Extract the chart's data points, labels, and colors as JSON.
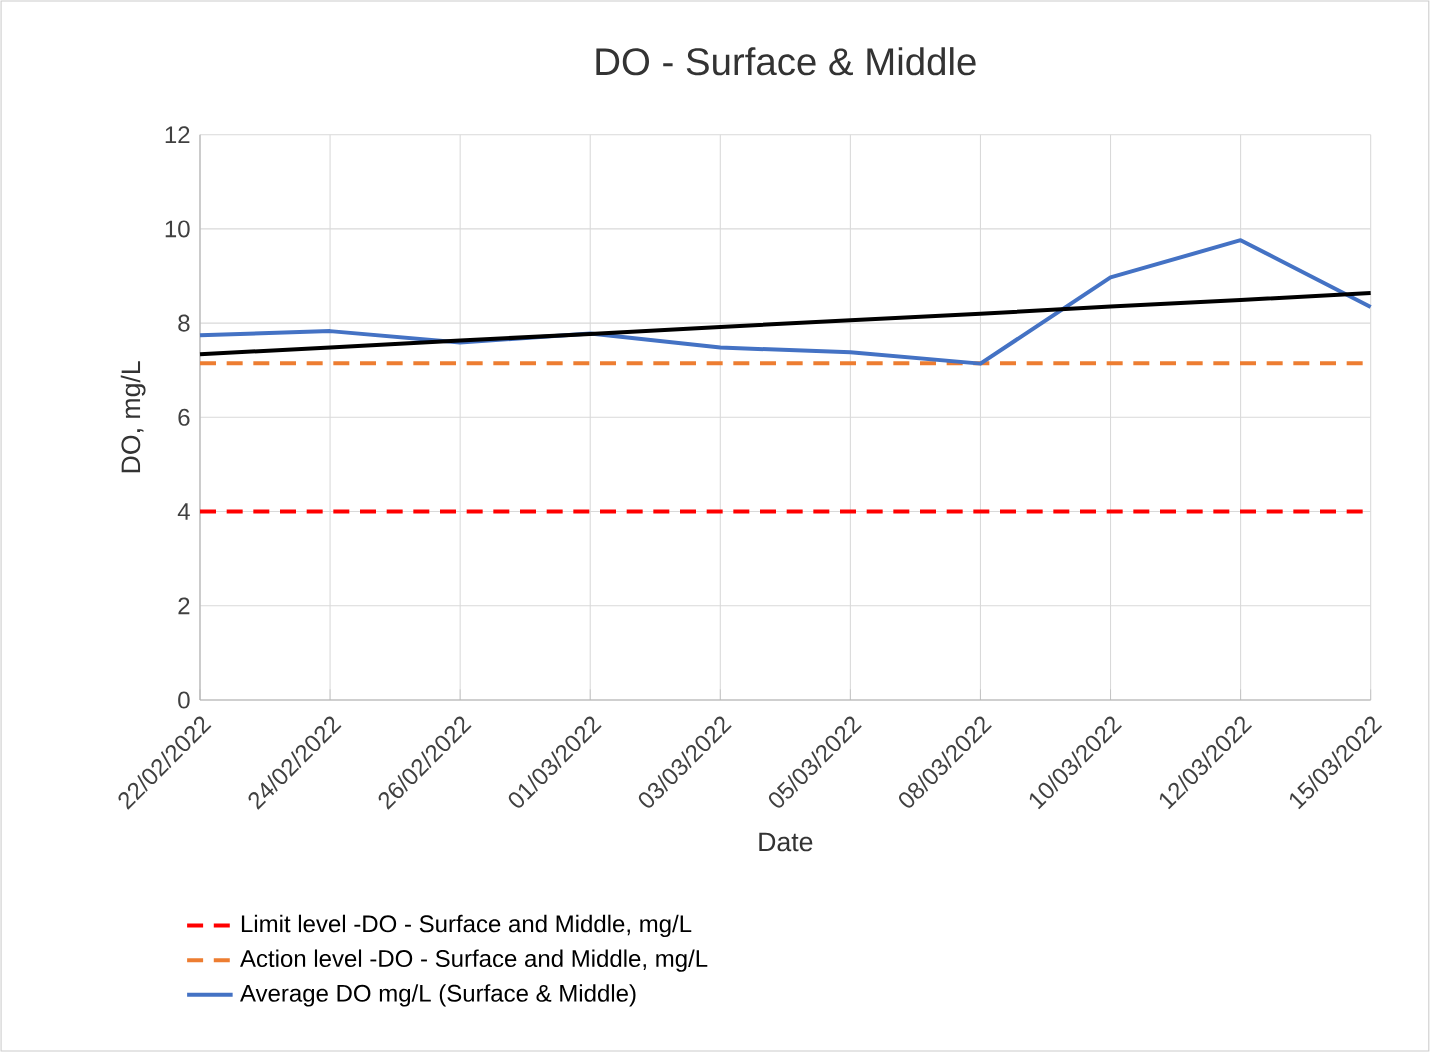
{
  "chart_data": {
    "type": "line",
    "title": "DO - Surface & Middle",
    "xlabel": "Date",
    "ylabel": "DO, mg/L",
    "categories": [
      "22/02/2022",
      "24/02/2022",
      "26/02/2022",
      "01/03/2022",
      "03/03/2022",
      "05/03/2022",
      "08/03/2022",
      "10/03/2022",
      "12/03/2022",
      "15/03/2022"
    ],
    "series": [
      {
        "name": "Limit level -DO - Surface and Middle, mg/L",
        "color": "#ff0000",
        "line_style": "dashed",
        "values": [
          4,
          4,
          4,
          4,
          4,
          4,
          4,
          4,
          4,
          4
        ]
      },
      {
        "name": "Action level -DO - Surface and Middle, mg/L",
        "color": "#ed7d31",
        "line_style": "dashed",
        "values": [
          7.15,
          7.15,
          7.15,
          7.15,
          7.15,
          7.15,
          7.15,
          7.15,
          7.15,
          7.15
        ]
      },
      {
        "name": "Average DO mg/L (Surface & Middle)",
        "color": "#4472c4",
        "line_style": "solid",
        "values": [
          7.74,
          7.83,
          7.59,
          7.78,
          7.48,
          7.38,
          7.14,
          8.97,
          9.76,
          8.34
        ]
      },
      {
        "type": "line",
        "color": "#000000",
        "line_style": "solid",
        "values": [
          7.34,
          7.48,
          7.63,
          7.77,
          7.92,
          8.06,
          8.2,
          8.35,
          8.49,
          8.64
        ]
      }
    ],
    "ylim": [
      0,
      12
    ],
    "yticks": [
      0,
      2,
      4,
      6,
      8,
      10,
      12
    ],
    "grid": true,
    "legend": "bottom",
    "marker": "none"
  }
}
